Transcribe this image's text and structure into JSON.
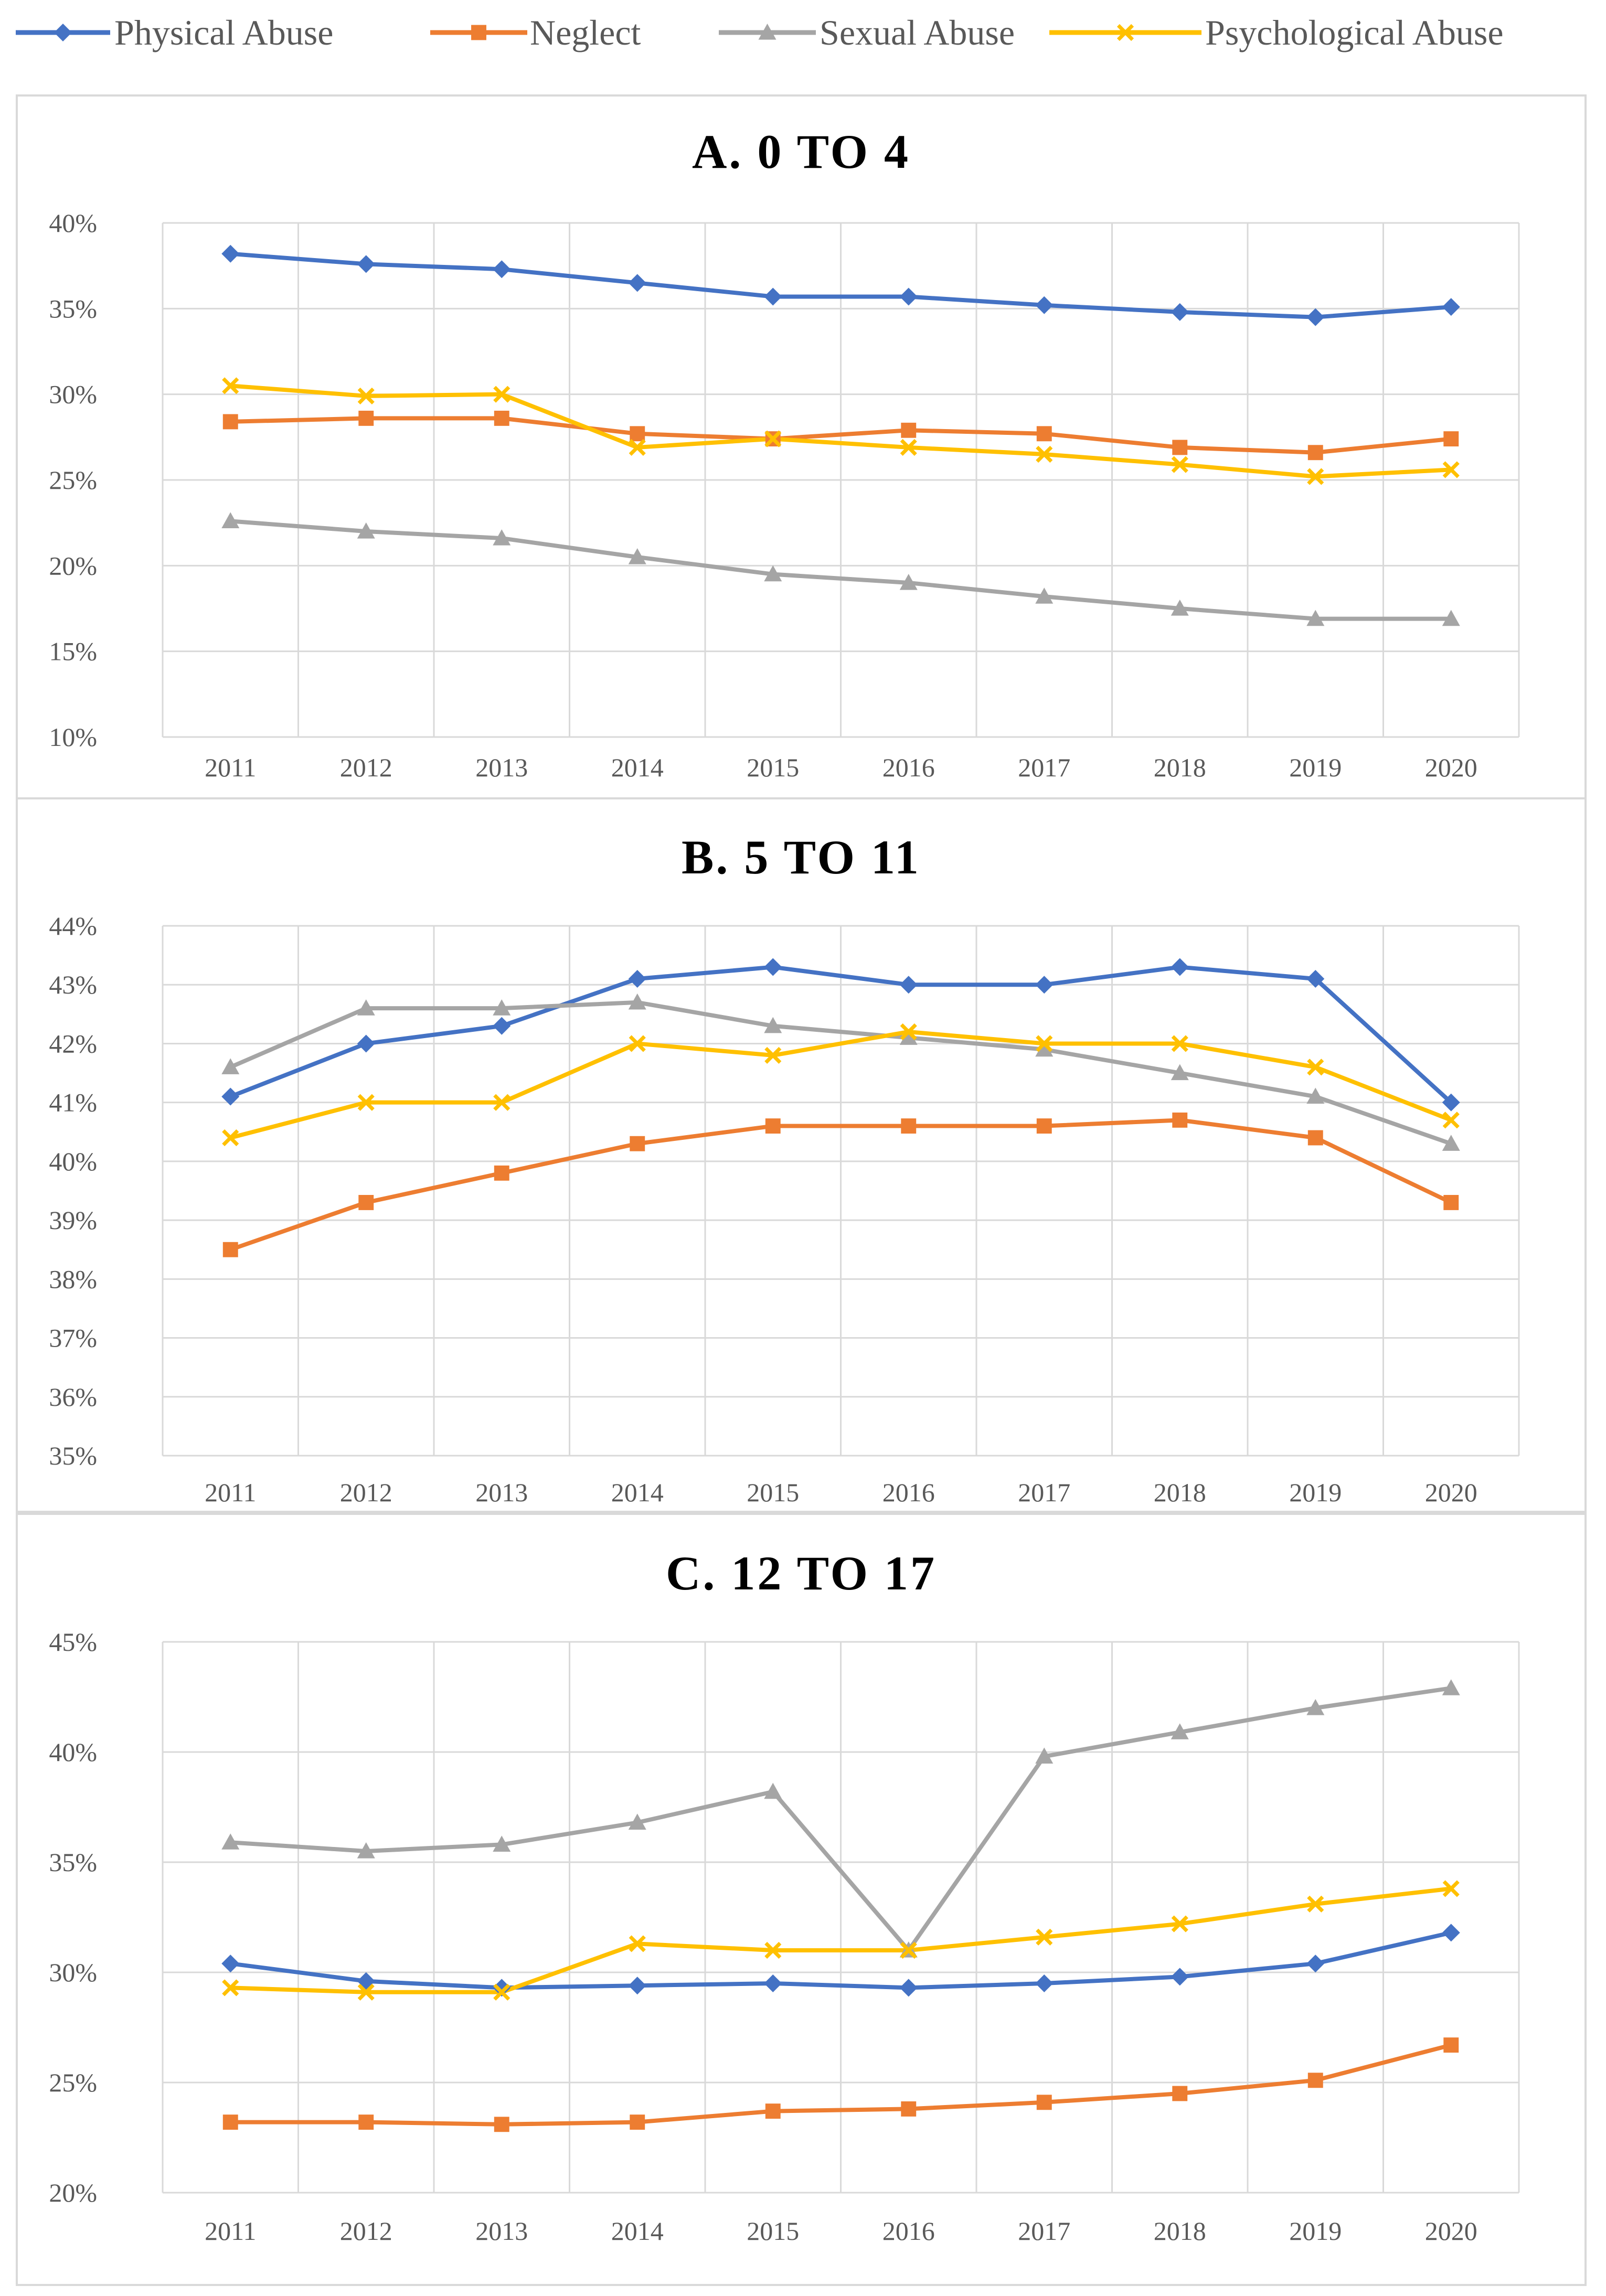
{
  "colors": {
    "physical": "#4472C4",
    "neglect": "#ED7D31",
    "sexual": "#A5A5A5",
    "psychological": "#FFC000",
    "grid": "#D9D9D9",
    "border": "#D9D9D9",
    "axis_text": "#595959"
  },
  "legend": [
    {
      "name": "Physical Abuse",
      "marker": "diamond",
      "color_key": "physical"
    },
    {
      "name": "Neglect",
      "marker": "square",
      "color_key": "neglect"
    },
    {
      "name": "Sexual Abuse",
      "marker": "triangle",
      "color_key": "sexual"
    },
    {
      "name": "Psychological Abuse",
      "marker": "x",
      "color_key": "psychological"
    }
  ],
  "chart_data": [
    {
      "type": "line",
      "title": "A. 0 TO 4",
      "categories": [
        "2011",
        "2012",
        "2013",
        "2014",
        "2015",
        "2016",
        "2017",
        "2018",
        "2019",
        "2020"
      ],
      "ylim": [
        0.1,
        0.4
      ],
      "yticks": [
        0.1,
        0.15,
        0.2,
        0.25,
        0.3,
        0.35,
        0.4
      ],
      "ytick_labels": [
        "10%",
        "15%",
        "20%",
        "25%",
        "30%",
        "35%",
        "40%"
      ],
      "series": [
        {
          "name": "Physical Abuse",
          "values": [
            0.382,
            0.376,
            0.373,
            0.365,
            0.357,
            0.357,
            0.352,
            0.348,
            0.345,
            0.351
          ]
        },
        {
          "name": "Neglect",
          "values": [
            0.284,
            0.286,
            0.286,
            0.277,
            0.274,
            0.279,
            0.277,
            0.269,
            0.266,
            0.274
          ]
        },
        {
          "name": "Sexual Abuse",
          "values": [
            0.226,
            0.22,
            0.216,
            0.205,
            0.195,
            0.19,
            0.182,
            0.175,
            0.169,
            0.169
          ]
        },
        {
          "name": "Psychological Abuse",
          "values": [
            0.305,
            0.299,
            0.3,
            0.269,
            0.274,
            0.269,
            0.265,
            0.259,
            0.252,
            0.256
          ]
        }
      ]
    },
    {
      "type": "line",
      "title": "B. 5 TO 11",
      "categories": [
        "2011",
        "2012",
        "2013",
        "2014",
        "2015",
        "2016",
        "2017",
        "2018",
        "2019",
        "2020"
      ],
      "ylim": [
        0.35,
        0.44
      ],
      "yticks": [
        0.35,
        0.36,
        0.37,
        0.38,
        0.39,
        0.4,
        0.41,
        0.42,
        0.43,
        0.44
      ],
      "ytick_labels": [
        "35%",
        "36%",
        "37%",
        "38%",
        "39%",
        "40%",
        "41%",
        "42%",
        "43%",
        "44%"
      ],
      "series": [
        {
          "name": "Physical Abuse",
          "values": [
            0.411,
            0.42,
            0.423,
            0.431,
            0.433,
            0.43,
            0.43,
            0.433,
            0.431,
            0.41
          ]
        },
        {
          "name": "Neglect",
          "values": [
            0.385,
            0.393,
            0.398,
            0.403,
            0.406,
            0.406,
            0.406,
            0.407,
            0.404,
            0.393
          ]
        },
        {
          "name": "Sexual Abuse",
          "values": [
            0.416,
            0.426,
            0.426,
            0.427,
            0.423,
            0.421,
            0.419,
            0.415,
            0.411,
            0.403
          ]
        },
        {
          "name": "Psychological Abuse",
          "values": [
            0.404,
            0.41,
            0.41,
            0.42,
            0.418,
            0.422,
            0.42,
            0.42,
            0.416,
            0.407
          ]
        }
      ]
    },
    {
      "type": "line",
      "title": "C. 12 TO 17",
      "categories": [
        "2011",
        "2012",
        "2013",
        "2014",
        "2015",
        "2016",
        "2017",
        "2018",
        "2019",
        "2020"
      ],
      "ylim": [
        0.2,
        0.45
      ],
      "yticks": [
        0.2,
        0.25,
        0.3,
        0.35,
        0.4,
        0.45
      ],
      "ytick_labels": [
        "20%",
        "25%",
        "30%",
        "35%",
        "40%",
        "45%"
      ],
      "series": [
        {
          "name": "Physical Abuse",
          "values": [
            0.304,
            0.296,
            0.293,
            0.294,
            0.295,
            0.293,
            0.295,
            0.298,
            0.304,
            0.318
          ]
        },
        {
          "name": "Neglect",
          "values": [
            0.232,
            0.232,
            0.231,
            0.232,
            0.237,
            0.238,
            0.241,
            0.245,
            0.251,
            0.267
          ]
        },
        {
          "name": "Sexual Abuse",
          "values": [
            0.359,
            0.355,
            0.358,
            0.368,
            0.382,
            0.31,
            0.398,
            0.409,
            0.42,
            0.429
          ]
        },
        {
          "name": "Psychological Abuse",
          "values": [
            0.293,
            0.291,
            0.291,
            0.313,
            0.31,
            0.31,
            0.316,
            0.322,
            0.331,
            0.338
          ]
        }
      ]
    }
  ]
}
